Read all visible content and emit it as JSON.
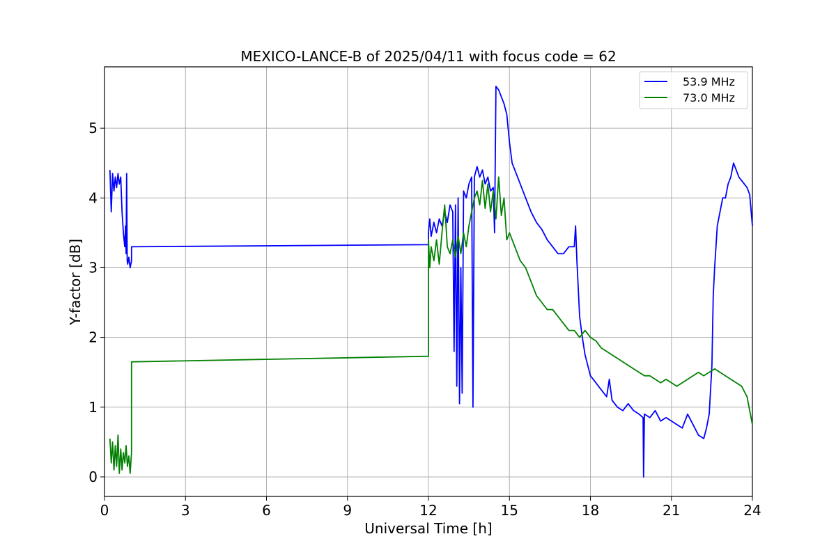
{
  "chart_data": {
    "type": "line",
    "title": "MEXICO-LANCE-B of 2025/04/11 with focus code = 62",
    "xlabel": "Universal Time [h]",
    "ylabel": "Y-factor [dB]",
    "xlim": [
      0,
      24
    ],
    "ylim": [
      -0.28,
      5.88
    ],
    "xticks": [
      0,
      3,
      6,
      9,
      12,
      15,
      18,
      21,
      24
    ],
    "yticks": [
      0,
      1,
      2,
      3,
      4,
      5
    ],
    "grid": true,
    "legend_position": "top-right",
    "series": [
      {
        "name": "53.9 MHz",
        "color": "#0000ff",
        "points": [
          [
            0.2,
            4.4
          ],
          [
            0.25,
            3.8
          ],
          [
            0.3,
            4.35
          ],
          [
            0.35,
            4.1
          ],
          [
            0.4,
            4.3
          ],
          [
            0.45,
            4.15
          ],
          [
            0.5,
            4.35
          ],
          [
            0.55,
            4.2
          ],
          [
            0.6,
            4.3
          ],
          [
            0.65,
            3.8
          ],
          [
            0.7,
            3.5
          ],
          [
            0.75,
            3.3
          ],
          [
            0.78,
            3.6
          ],
          [
            0.8,
            3.2
          ],
          [
            0.82,
            4.35
          ],
          [
            0.84,
            3.1
          ],
          [
            0.86,
            3.05
          ],
          [
            0.9,
            3.15
          ],
          [
            0.95,
            3.0
          ],
          [
            1.0,
            3.1
          ],
          [
            1.0,
            3.3
          ],
          [
            12.0,
            3.33
          ],
          [
            12.0,
            3.5
          ],
          [
            12.05,
            3.7
          ],
          [
            12.1,
            3.45
          ],
          [
            12.2,
            3.65
          ],
          [
            12.3,
            3.5
          ],
          [
            12.4,
            3.7
          ],
          [
            12.5,
            3.6
          ],
          [
            12.6,
            3.8
          ],
          [
            12.7,
            3.65
          ],
          [
            12.8,
            3.9
          ],
          [
            12.9,
            3.8
          ],
          [
            12.95,
            1.8
          ],
          [
            13.0,
            3.9
          ],
          [
            13.05,
            1.3
          ],
          [
            13.1,
            4.0
          ],
          [
            13.15,
            1.05
          ],
          [
            13.2,
            3.0
          ],
          [
            13.25,
            1.2
          ],
          [
            13.3,
            4.1
          ],
          [
            13.4,
            4.0
          ],
          [
            13.5,
            4.2
          ],
          [
            13.6,
            4.3
          ],
          [
            13.65,
            1.0
          ],
          [
            13.7,
            4.3
          ],
          [
            13.8,
            4.45
          ],
          [
            13.9,
            4.3
          ],
          [
            14.0,
            4.4
          ],
          [
            14.1,
            4.2
          ],
          [
            14.2,
            4.3
          ],
          [
            14.3,
            4.1
          ],
          [
            14.4,
            4.15
          ],
          [
            14.45,
            3.5
          ],
          [
            14.5,
            5.6
          ],
          [
            14.6,
            5.55
          ],
          [
            14.7,
            5.45
          ],
          [
            14.8,
            5.35
          ],
          [
            14.9,
            5.2
          ],
          [
            15.0,
            4.8
          ],
          [
            15.1,
            4.5
          ],
          [
            15.2,
            4.4
          ],
          [
            15.4,
            4.2
          ],
          [
            15.6,
            4.0
          ],
          [
            15.8,
            3.8
          ],
          [
            16.0,
            3.65
          ],
          [
            16.2,
            3.55
          ],
          [
            16.4,
            3.4
          ],
          [
            16.6,
            3.3
          ],
          [
            16.8,
            3.2
          ],
          [
            17.0,
            3.2
          ],
          [
            17.2,
            3.3
          ],
          [
            17.4,
            3.3
          ],
          [
            17.45,
            3.6
          ],
          [
            17.5,
            3.1
          ],
          [
            17.6,
            2.3
          ],
          [
            17.7,
            2.0
          ],
          [
            17.8,
            1.75
          ],
          [
            18.0,
            1.45
          ],
          [
            18.2,
            1.35
          ],
          [
            18.4,
            1.25
          ],
          [
            18.6,
            1.15
          ],
          [
            18.7,
            1.4
          ],
          [
            18.8,
            1.1
          ],
          [
            19.0,
            1.0
          ],
          [
            19.2,
            0.95
          ],
          [
            19.4,
            1.05
          ],
          [
            19.6,
            0.95
          ],
          [
            19.8,
            0.9
          ],
          [
            19.95,
            0.85
          ],
          [
            19.97,
            0.0
          ],
          [
            20.0,
            0.9
          ],
          [
            20.2,
            0.85
          ],
          [
            20.4,
            0.95
          ],
          [
            20.6,
            0.8
          ],
          [
            20.8,
            0.85
          ],
          [
            21.0,
            0.8
          ],
          [
            21.2,
            0.75
          ],
          [
            21.4,
            0.7
          ],
          [
            21.6,
            0.9
          ],
          [
            21.8,
            0.75
          ],
          [
            22.0,
            0.6
          ],
          [
            22.2,
            0.55
          ],
          [
            22.3,
            0.7
          ],
          [
            22.4,
            0.9
          ],
          [
            22.5,
            1.6
          ],
          [
            22.55,
            2.6
          ],
          [
            22.6,
            3.0
          ],
          [
            22.7,
            3.6
          ],
          [
            22.8,
            3.8
          ],
          [
            22.9,
            4.0
          ],
          [
            23.0,
            4.0
          ],
          [
            23.1,
            4.2
          ],
          [
            23.2,
            4.3
          ],
          [
            23.3,
            4.5
          ],
          [
            23.4,
            4.4
          ],
          [
            23.5,
            4.3
          ],
          [
            23.6,
            4.25
          ],
          [
            23.7,
            4.2
          ],
          [
            23.8,
            4.15
          ],
          [
            23.9,
            4.05
          ],
          [
            24.0,
            3.6
          ]
        ]
      },
      {
        "name": "73.0 MHz",
        "color": "#008000",
        "points": [
          [
            0.2,
            0.55
          ],
          [
            0.25,
            0.2
          ],
          [
            0.3,
            0.5
          ],
          [
            0.35,
            0.1
          ],
          [
            0.4,
            0.45
          ],
          [
            0.45,
            0.15
          ],
          [
            0.5,
            0.6
          ],
          [
            0.55,
            0.05
          ],
          [
            0.6,
            0.4
          ],
          [
            0.65,
            0.1
          ],
          [
            0.7,
            0.35
          ],
          [
            0.75,
            0.2
          ],
          [
            0.8,
            0.45
          ],
          [
            0.85,
            0.15
          ],
          [
            0.9,
            0.3
          ],
          [
            0.95,
            0.05
          ],
          [
            1.0,
            0.35
          ],
          [
            1.0,
            1.65
          ],
          [
            12.0,
            1.73
          ],
          [
            12.0,
            3.4
          ],
          [
            12.05,
            3.0
          ],
          [
            12.1,
            3.3
          ],
          [
            12.2,
            3.1
          ],
          [
            12.3,
            3.4
          ],
          [
            12.4,
            3.05
          ],
          [
            12.5,
            3.5
          ],
          [
            12.6,
            3.9
          ],
          [
            12.7,
            3.3
          ],
          [
            12.8,
            3.2
          ],
          [
            12.9,
            3.4
          ],
          [
            13.0,
            3.15
          ],
          [
            13.1,
            3.45
          ],
          [
            13.2,
            3.2
          ],
          [
            13.3,
            3.5
          ],
          [
            13.4,
            3.3
          ],
          [
            13.5,
            3.6
          ],
          [
            13.6,
            3.8
          ],
          [
            13.7,
            4.0
          ],
          [
            13.8,
            4.1
          ],
          [
            13.9,
            3.9
          ],
          [
            14.0,
            4.25
          ],
          [
            14.1,
            3.85
          ],
          [
            14.2,
            4.2
          ],
          [
            14.3,
            3.8
          ],
          [
            14.4,
            4.1
          ],
          [
            14.5,
            3.7
          ],
          [
            14.6,
            4.3
          ],
          [
            14.7,
            3.75
          ],
          [
            14.8,
            4.0
          ],
          [
            14.9,
            3.4
          ],
          [
            15.0,
            3.5
          ],
          [
            15.2,
            3.3
          ],
          [
            15.4,
            3.1
          ],
          [
            15.6,
            3.0
          ],
          [
            15.8,
            2.8
          ],
          [
            16.0,
            2.6
          ],
          [
            16.2,
            2.5
          ],
          [
            16.4,
            2.4
          ],
          [
            16.6,
            2.4
          ],
          [
            16.8,
            2.3
          ],
          [
            17.0,
            2.2
          ],
          [
            17.2,
            2.1
          ],
          [
            17.4,
            2.1
          ],
          [
            17.6,
            2.0
          ],
          [
            17.8,
            2.1
          ],
          [
            18.0,
            2.0
          ],
          [
            18.2,
            1.95
          ],
          [
            18.4,
            1.85
          ],
          [
            18.6,
            1.8
          ],
          [
            18.8,
            1.75
          ],
          [
            19.0,
            1.7
          ],
          [
            19.2,
            1.65
          ],
          [
            19.4,
            1.6
          ],
          [
            19.6,
            1.55
          ],
          [
            19.8,
            1.5
          ],
          [
            20.0,
            1.45
          ],
          [
            20.2,
            1.45
          ],
          [
            20.4,
            1.4
          ],
          [
            20.6,
            1.35
          ],
          [
            20.8,
            1.4
          ],
          [
            21.0,
            1.35
          ],
          [
            21.2,
            1.3
          ],
          [
            21.4,
            1.35
          ],
          [
            21.6,
            1.4
          ],
          [
            21.8,
            1.45
          ],
          [
            22.0,
            1.5
          ],
          [
            22.2,
            1.45
          ],
          [
            22.4,
            1.5
          ],
          [
            22.6,
            1.55
          ],
          [
            22.8,
            1.5
          ],
          [
            23.0,
            1.45
          ],
          [
            23.2,
            1.4
          ],
          [
            23.4,
            1.35
          ],
          [
            23.6,
            1.3
          ],
          [
            23.8,
            1.15
          ],
          [
            24.0,
            0.75
          ]
        ]
      }
    ]
  }
}
